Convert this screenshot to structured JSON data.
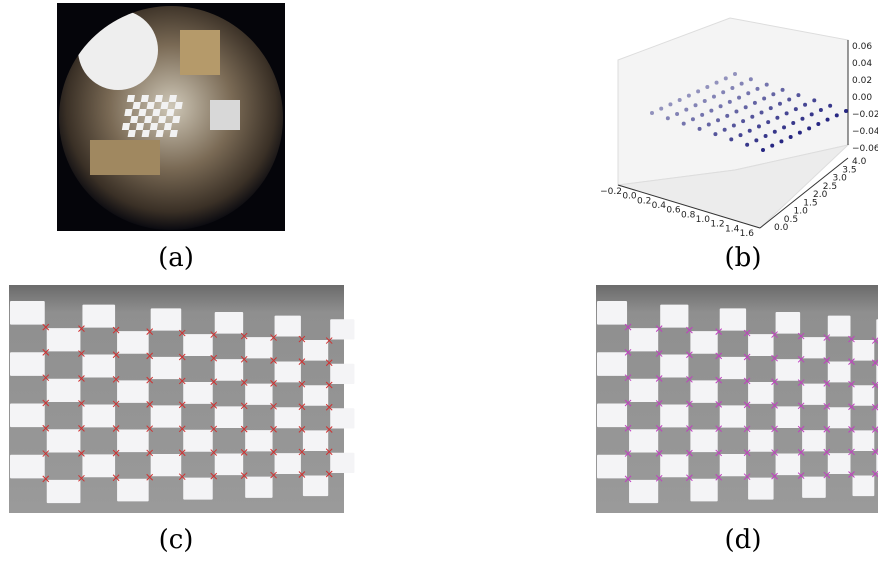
{
  "panels": [
    {
      "caption": "(a)"
    },
    {
      "caption": "(b)",
      "x_ticks": [
        "−0.2",
        "0.0",
        "0.2",
        "0.4",
        "0.6",
        "0.8",
        "1.0",
        "1.2",
        "1.4",
        "1.6"
      ],
      "y_ticks": [
        "0.0",
        "0.5",
        "1.0",
        "1.5",
        "2.0",
        "2.5",
        "3.0",
        "3.5",
        "4.0"
      ],
      "z_ticks": [
        "0.06",
        "0.04",
        "0.02",
        "0.00",
        "−0.02",
        "−0.04",
        "−0.06"
      ]
    },
    {
      "caption": "(c)"
    },
    {
      "caption": "(d)"
    }
  ]
}
